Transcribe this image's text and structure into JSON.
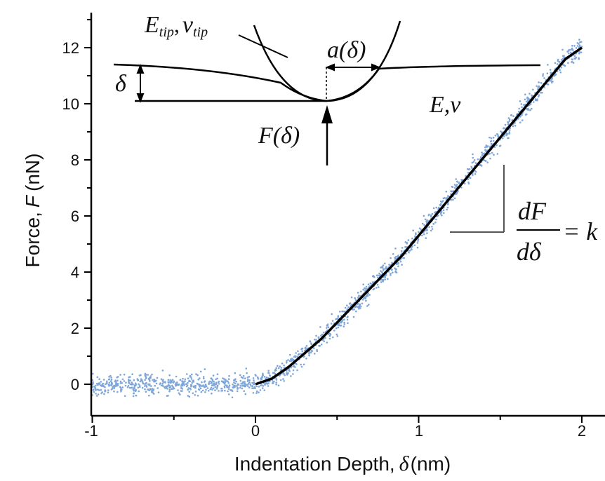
{
  "chart_data": {
    "type": "scatter",
    "xlabel": "Indentation Depth,",
    "xlabel_symbol": "δ",
    "xlabel_unit": "(nm)",
    "ylabel": "Force,",
    "ylabel_symbol": "F",
    "ylabel_unit": "(nN)",
    "xlim": [
      -1,
      2.1
    ],
    "ylim": [
      -1,
      13
    ],
    "xticks": [
      -1,
      0,
      1,
      2
    ],
    "xtick_labels": [
      "-1",
      "0",
      "1",
      "2"
    ],
    "yticks": [
      0,
      2,
      4,
      6,
      8,
      10,
      12
    ],
    "ytick_labels": [
      "0",
      "2",
      "4",
      "6",
      "8",
      "10",
      "12"
    ],
    "grid": false,
    "series": [
      {
        "kind": "points",
        "color": "#7ea6d8",
        "x": [
          -1.0,
          -0.9,
          -0.8,
          -0.7,
          -0.6,
          -0.5,
          -0.4,
          -0.3,
          -0.2,
          -0.1,
          0.0,
          0.1,
          0.2,
          0.3,
          0.4,
          0.5,
          0.6,
          0.7,
          0.8,
          0.9,
          1.0,
          1.1,
          1.2,
          1.3,
          1.4,
          1.5,
          1.6,
          1.7,
          1.8,
          1.9,
          2.0
        ],
        "y": [
          0.0,
          0.0,
          0.0,
          0.0,
          0.0,
          0.0,
          0.0,
          0.0,
          0.0,
          0.0,
          0.0,
          0.2,
          0.6,
          1.1,
          1.6,
          2.2,
          2.8,
          3.4,
          4.0,
          4.6,
          5.3,
          6.0,
          6.7,
          7.4,
          8.1,
          8.8,
          9.5,
          10.2,
          10.9,
          11.6,
          12.0
        ]
      },
      {
        "kind": "line",
        "color": "#000000",
        "x": [
          0.0,
          0.1,
          0.2,
          0.3,
          0.4,
          0.5,
          0.6,
          0.7,
          0.8,
          0.9,
          1.0,
          1.1,
          1.2,
          1.3,
          1.4,
          1.5,
          1.6,
          1.7,
          1.8,
          1.9,
          2.0
        ],
        "y": [
          0.0,
          0.2,
          0.6,
          1.1,
          1.6,
          2.2,
          2.8,
          3.4,
          4.0,
          4.6,
          5.3,
          6.0,
          6.7,
          7.4,
          8.1,
          8.8,
          9.5,
          10.2,
          10.9,
          11.6,
          12.0
        ]
      }
    ],
    "annotations": {
      "tip_label_E": "E",
      "tip_label_E_sub": "tip",
      "tip_label_comma": ",",
      "tip_label_nu": "ν",
      "tip_label_nu_sub": "tip",
      "contact_label": "a(δ)",
      "delta_label": "δ",
      "sample_label": "E,ν",
      "force_label": "F(δ)",
      "slope_numerator": "dF",
      "slope_denominator": "dδ",
      "slope_equals": "= k"
    }
  }
}
